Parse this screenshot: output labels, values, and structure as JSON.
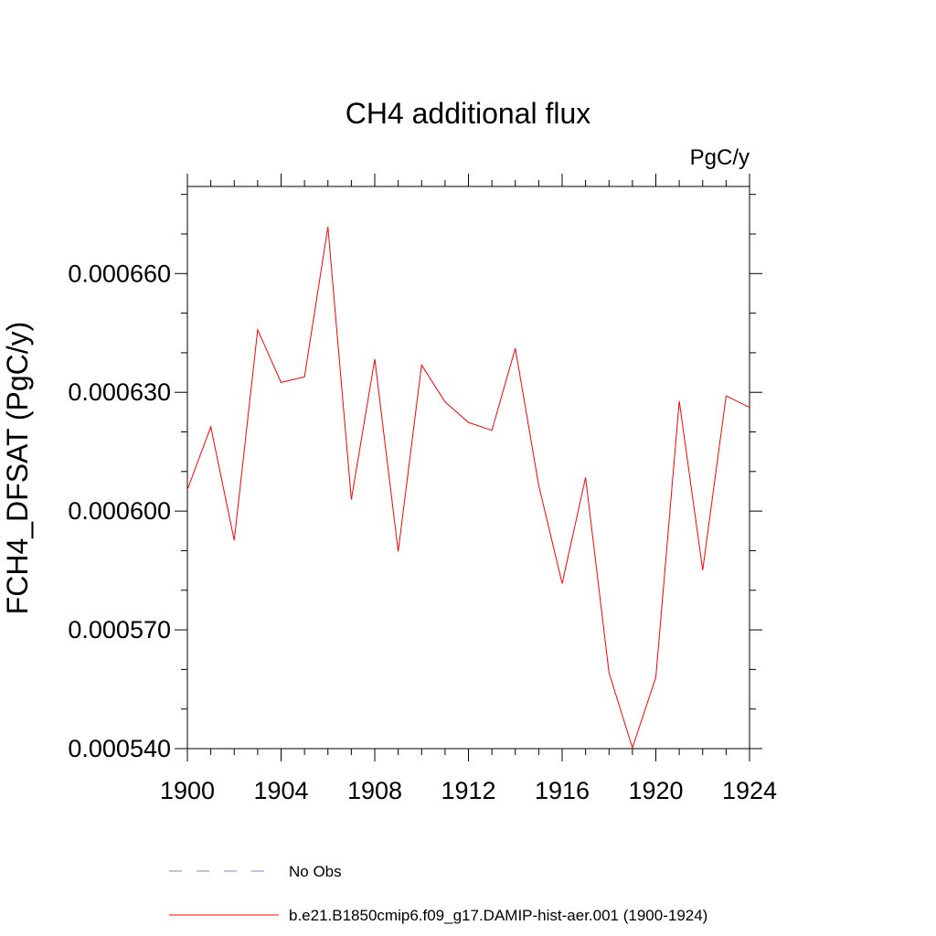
{
  "chart_data": {
    "type": "line",
    "title": "CH4 additional flux",
    "units": "PgC/y",
    "ylabel": "FCH4_DFSAT  (PgC/y)",
    "xlabel": "",
    "xlim": [
      1900,
      1924
    ],
    "ylim": [
      0.00054,
      0.000682
    ],
    "x_ticks": [
      1900,
      1904,
      1908,
      1912,
      1916,
      1920,
      1924
    ],
    "x_tick_labels": [
      "1900",
      "1904",
      "1908",
      "1912",
      "1916",
      "1920",
      "1924"
    ],
    "y_ticks": [
      0.00054,
      0.00057,
      0.0006,
      0.00063,
      0.00066
    ],
    "y_tick_labels": [
      "0.000540",
      "0.000570",
      "0.000600",
      "0.000630",
      "0.000660"
    ],
    "grid": false,
    "legend_position": "bottom",
    "legend": [
      {
        "label": "No Obs",
        "color": "#8080c0",
        "style": "dashed"
      },
      {
        "label": "b.e21.B1850cmip6.f09_g17.DAMIP-hist-aer.001 (1900-1924)",
        "color": "#ff0000",
        "style": "solid"
      }
    ],
    "series": [
      {
        "name": "b.e21.B1850cmip6.f09_g17.DAMIP-hist-aer.001 (1900-1924)",
        "color": "#ff0000",
        "x": [
          1900,
          1901,
          1902,
          1903,
          1904,
          1905,
          1906,
          1907,
          1908,
          1909,
          1910,
          1911,
          1912,
          1913,
          1914,
          1915,
          1916,
          1917,
          1918,
          1919,
          1920,
          1921,
          1922,
          1923,
          1924
        ],
        "y": [
          0.0006054,
          0.0006213,
          0.0005926,
          0.0006458,
          0.0006325,
          0.0006339,
          0.0006718,
          0.0006029,
          0.0006384,
          0.0005898,
          0.0006369,
          0.0006276,
          0.0006224,
          0.0006204,
          0.0006411,
          0.0006065,
          0.0005817,
          0.0006085,
          0.0005592,
          0.0005402,
          0.000558,
          0.0006278,
          0.0005851,
          0.0006291,
          0.0006262
        ]
      }
    ]
  }
}
